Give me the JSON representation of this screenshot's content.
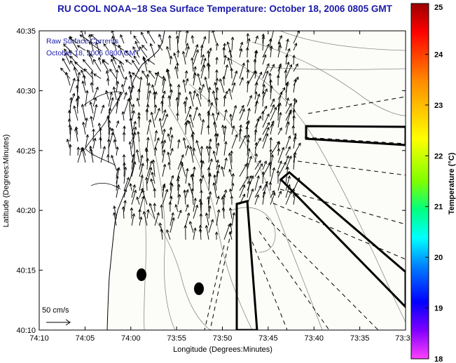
{
  "title": "RU COOL  NOAA−18  Sea Surface Temperature:  October 18, 2006 0805 GMT",
  "legend": {
    "line1": "Raw Surface Currents",
    "line2": "October 18, 2006 0800 GMT",
    "scale_label": "50 cm/s"
  },
  "axes": {
    "xlabel": "Longitude (Degrees:Minutes)",
    "ylabel": "Latitude (Degrees:Minutes)",
    "x_ticks": [
      "74:10",
      "74:05",
      "74:00",
      "73:55",
      "73:50",
      "73:45",
      "73:40",
      "73:35",
      "73:3"
    ],
    "y_ticks": [
      "40:35",
      "40:30",
      "40:25",
      "40:20",
      "40:15",
      "40:10"
    ]
  },
  "colorbar": {
    "label": "Temperature (°C)",
    "ticks": [
      "25",
      "24",
      "23",
      "22",
      "21",
      "20",
      "19",
      "18"
    ],
    "colors": [
      "#9b0000",
      "#ff0000",
      "#ff8c00",
      "#ffff00",
      "#7fff00",
      "#00ff7f",
      "#00ffff",
      "#0080ff",
      "#0000ff",
      "#8000ff",
      "#ff40ff"
    ]
  },
  "map": {
    "land_color": "#ffffff",
    "ocean_color": "#fcfcf8",
    "contour_color": "#888888",
    "markers": 2
  }
}
